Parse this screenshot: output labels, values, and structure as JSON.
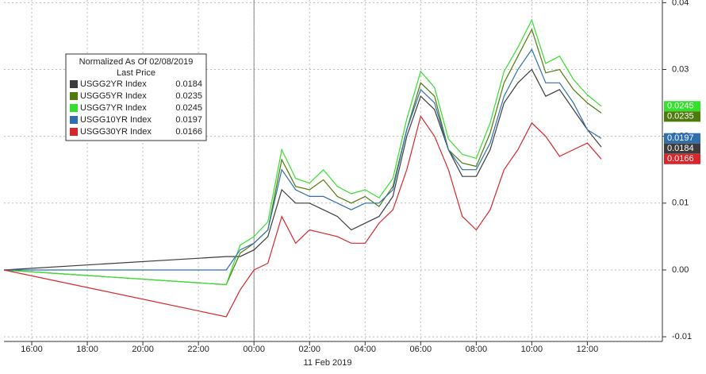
{
  "chart_data": {
    "type": "line",
    "legend_title": "Normalized As Of 02/08/2019",
    "legend_subtitle": "Last Price",
    "date_label": "11 Feb 2019",
    "legend_position": "upper left",
    "grid": true,
    "x": [
      15,
      23,
      23.5,
      24,
      24.5,
      25,
      25.5,
      26,
      26.5,
      27,
      27.5,
      28,
      28.5,
      29,
      29.5,
      30,
      30.5,
      31,
      31.5,
      32,
      32.5,
      33,
      33.5,
      34,
      34.5,
      35,
      35.5,
      36,
      36.5
    ],
    "xlim": [
      15,
      38.7
    ],
    "xticks": [
      {
        "value": 16,
        "label": "16:00"
      },
      {
        "value": 18,
        "label": "18:00"
      },
      {
        "value": 20,
        "label": "20:00"
      },
      {
        "value": 22,
        "label": "22:00"
      },
      {
        "value": 24,
        "label": "00:00"
      },
      {
        "value": 26,
        "label": "02:00"
      },
      {
        "value": 28,
        "label": "04:00"
      },
      {
        "value": 30,
        "label": "06:00"
      },
      {
        "value": 32,
        "label": "08:00"
      },
      {
        "value": 34,
        "label": "10:00"
      },
      {
        "value": 36,
        "label": "12:00"
      }
    ],
    "ylim": [
      -0.0107,
      0.0404
    ],
    "yticks": [
      -0.01,
      {
        "value": 0,
        "label": "0.00"
      },
      0.01,
      0.02,
      0.03,
      0.04
    ],
    "series": [
      {
        "name": "USGG2YR Index",
        "color": "#3c3c3c",
        "values": [
          0,
          0.002,
          0.002,
          0.003,
          0.005,
          0.012,
          0.01,
          0.01,
          0.009,
          0.008,
          0.006,
          0.007,
          0.008,
          0.011,
          0.02,
          0.026,
          0.024,
          0.018,
          0.014,
          0.014,
          0.018,
          0.025,
          0.028,
          0.03,
          0.026,
          0.027,
          0.024,
          0.021,
          0.0184
        ]
      },
      {
        "name": "USGG5YR Index",
        "color": "#4e7a0c",
        "values": [
          0,
          -0.0022,
          0.0025,
          0.004,
          0.006,
          0.0165,
          0.0125,
          0.012,
          0.0135,
          0.011,
          0.01,
          0.011,
          0.0095,
          0.0125,
          0.021,
          0.028,
          0.026,
          0.018,
          0.016,
          0.0155,
          0.0205,
          0.028,
          0.032,
          0.036,
          0.0295,
          0.03,
          0.027,
          0.025,
          0.0235
        ]
      },
      {
        "name": "USGG7YR Index",
        "color": "#35e02c",
        "values": [
          0,
          -0.0022,
          0.0037,
          0.005,
          0.0072,
          0.018,
          0.0137,
          0.013,
          0.015,
          0.0125,
          0.0114,
          0.012,
          0.0108,
          0.0137,
          0.0226,
          0.0297,
          0.0273,
          0.0196,
          0.0173,
          0.0167,
          0.022,
          0.0297,
          0.0333,
          0.0374,
          0.0309,
          0.032,
          0.0285,
          0.0262,
          0.0245
        ]
      },
      {
        "name": "USGG10YR Index",
        "color": "#2f6fae",
        "values": [
          0,
          0,
          0.003,
          0.004,
          0.006,
          0.015,
          0.012,
          0.011,
          0.011,
          0.01,
          0.009,
          0.01,
          0.01,
          0.012,
          0.021,
          0.027,
          0.025,
          0.018,
          0.015,
          0.015,
          0.019,
          0.026,
          0.03,
          0.033,
          0.028,
          0.028,
          0.025,
          0.021,
          0.0197
        ]
      },
      {
        "name": "USGG30YR Index",
        "color": "#d8262a",
        "values": [
          0,
          -0.007,
          -0.003,
          0.0,
          0.001,
          0.008,
          0.004,
          0.006,
          0.0055,
          0.005,
          0.004,
          0.004,
          0.007,
          0.009,
          0.015,
          0.023,
          0.02,
          0.015,
          0.008,
          0.006,
          0.009,
          0.015,
          0.018,
          0.022,
          0.02,
          0.017,
          0.018,
          0.019,
          0.0166
        ]
      }
    ]
  }
}
